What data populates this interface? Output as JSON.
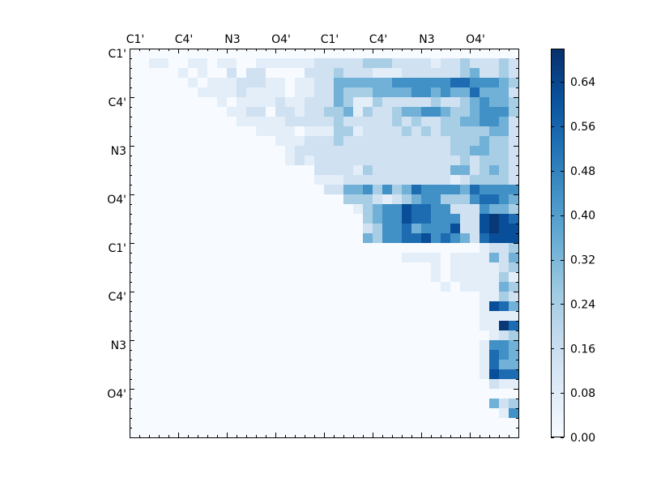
{
  "chart_data": {
    "type": "heatmap",
    "n": 40,
    "x_tick_labels": [
      "C1'",
      "C4'",
      "N3",
      "O4'",
      "C1'",
      "C4'",
      "N3",
      "O4'"
    ],
    "y_tick_labels": [
      "C1'",
      "C4'",
      "N3",
      "O4'",
      "C1'",
      "C4'",
      "N3",
      "O4'"
    ],
    "colorbar": {
      "colormap": "Blues",
      "vmin": 0.0,
      "vmax": 0.7,
      "ticks": [
        0.0,
        0.08,
        0.16,
        0.24,
        0.32,
        0.4,
        0.48,
        0.56,
        0.64
      ],
      "tick_labels": [
        "0.00",
        "0.08",
        "0.16",
        "0.24",
        "0.32",
        "0.40",
        "0.48",
        "0.56",
        "0.64"
      ]
    },
    "grid": false,
    "legend": "none",
    "rows": [
      "0000000000000000000000000000000000000000",
      "0011001101100111111222223332222122322232",
      "0000010100202200002223222111222222342232",
      "0000001011122211011224444445555556655543",
      "0000000111121111011224333444455454464442",
      "0000000001011112112224311322222322345443",
      "0000000000112202212233413223445543345553",
      "0000000000011111222223222223232233445542",
      "0000000000000111101113312222323233333442",
      "0000000000000001112223222222222223334332",
      "0000000000000000122222222222222223344332",
      "0000000000000000121222222222222222323332",
      "0000000000000000000222213222222224423432",
      "0000000000000000000111222222222221233332",
      "0000000000000000000022445353465555465555",
      "0000000000000000000000333212345533356654",
      "0000000000000000000000013455766552225443",
      "0000000000000000000000003455766555227876",
      "0000000000000000000000002355645557227877",
      "0000000000000000000000004355667565426777",
      "0000000000000000000000000000000000001223",
      "0000000000000000000000000000111101111424",
      "0000000000000000000000000000000101111123",
      "0000000000000000000000000000000101111131",
      "0000000000000000000000000000000010111143",
      "0000000000000000000000000000000000001132",
      "0000000000000000000000000000000000001764",
      "0000000000000000000000000000000000001111",
      "0000000000000000000000000000000000001186",
      "0000000000000000000000000000000000000123",
      "0000000000000000000000000000000000001554",
      "0000000000000000000000000000000000001654",
      "0000000000000000000000000000000000001644",
      "0000000000000000000000000000000000001766",
      "0000000000000000000000000000000000000211",
      "0000000000000000000000000000000000000000",
      "0000000000000000000000000000000000000423",
      "0000000000000000000000000000000000000015",
      "0000000000000000000000000000000000000000",
      "0000000000000000000000000000000000000000"
    ],
    "value_levels": [
      0.0,
      0.07,
      0.14,
      0.24,
      0.34,
      0.44,
      0.54,
      0.62,
      0.68,
      0.68
    ]
  }
}
